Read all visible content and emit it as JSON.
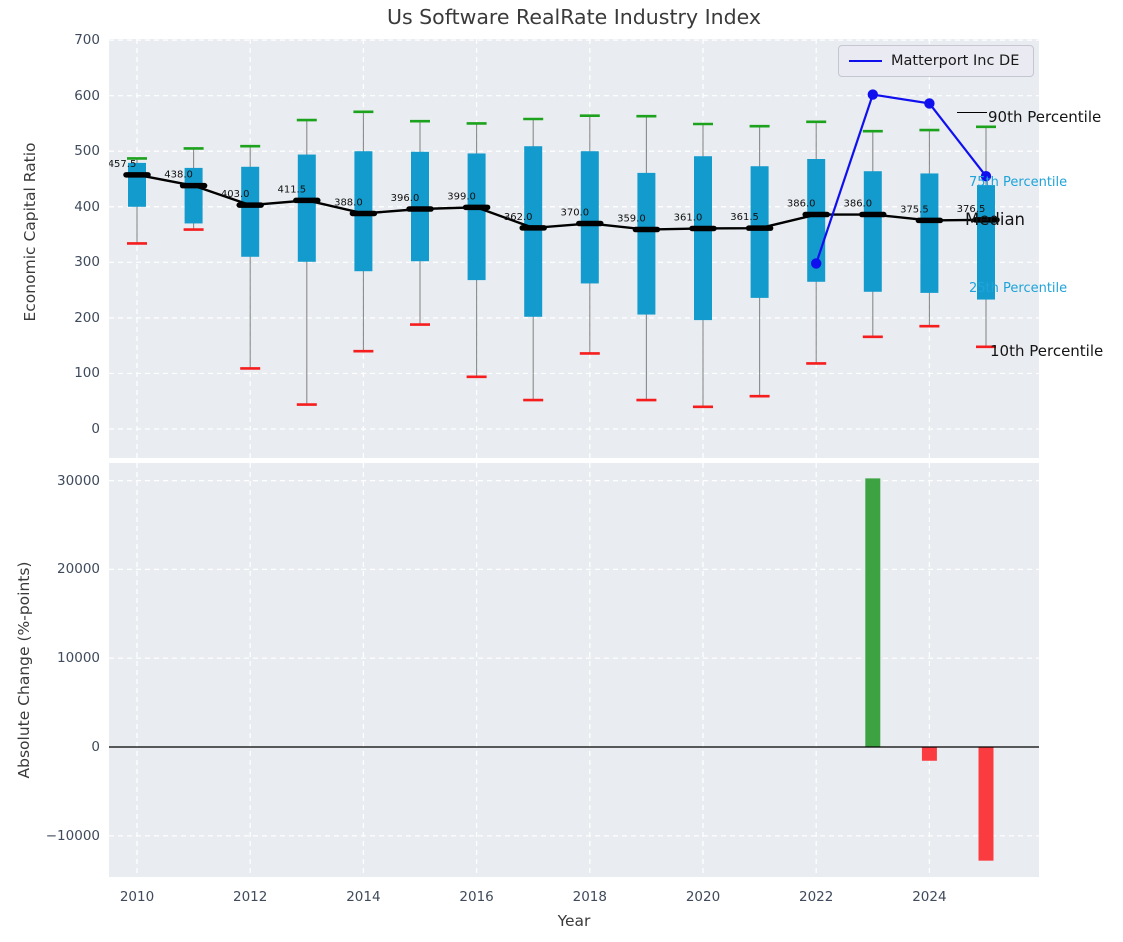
{
  "title": "Us Software RealRate Industry Index",
  "legend": {
    "label": "Matterport Inc DE"
  },
  "annotations": {
    "p90": "90th Percentile",
    "p75": "75th Percentile",
    "median": "Median",
    "p25": "25th Percentile",
    "p10": "10th Percentile"
  },
  "colors": {
    "box": "#149bcd",
    "whisker": "#8a8a8a",
    "cap_high": "#1da21d",
    "cap_low": "#f51d1d",
    "median_line": "#000000",
    "overlay_line": "#1010ee",
    "bar_up": "#3da342",
    "bar_down": "#fa3c40",
    "axes_bg": "#e9edf1",
    "grid": "#ffffff",
    "tick_text": "#3f4b5c",
    "blue_label": "#1fa3d9"
  },
  "chart_data": [
    {
      "type": "boxplot_line",
      "title": "Us Software RealRate Industry Index",
      "ylabel": "Economic Capital Ratio",
      "yticks": [
        0,
        100,
        200,
        300,
        400,
        500,
        600,
        700
      ],
      "ylim": [
        -52,
        701
      ],
      "grid": true,
      "years": [
        2010,
        2011,
        2012,
        2013,
        2014,
        2015,
        2016,
        2017,
        2018,
        2019,
        2020,
        2021,
        2022,
        2023,
        2024,
        2025
      ],
      "median": [
        457.5,
        438.0,
        403.0,
        411.5,
        388.0,
        396.0,
        399.0,
        362.0,
        370.0,
        359.0,
        361.0,
        361.5,
        386.0,
        386.0,
        375.5,
        376.5
      ],
      "median_labels": [
        "457.5",
        "438.0",
        "403.0",
        "411.5",
        "388.0",
        "396.0",
        "399.0",
        "362.0",
        "370.0",
        "359.0",
        "361.0",
        "361.5",
        "386.0",
        "386.0",
        "375.5",
        "376.5"
      ],
      "q75": [
        479,
        470,
        472,
        494,
        500,
        499,
        496,
        509,
        500,
        461,
        491,
        473,
        486,
        464,
        460,
        439
      ],
      "q25": [
        400,
        370,
        310,
        301,
        284,
        302,
        268,
        202,
        262,
        206,
        196,
        236,
        265,
        247,
        245,
        233
      ],
      "p90": [
        487,
        505,
        509,
        556,
        571,
        554,
        550,
        558,
        564,
        563,
        549,
        545,
        553,
        536,
        538,
        544
      ],
      "p10": [
        334,
        359,
        109,
        44,
        140,
        188,
        94,
        52,
        136,
        52,
        40,
        59,
        118,
        166,
        185,
        148
      ],
      "overlay_series": {
        "name": "Matterport Inc DE",
        "years": [
          2022,
          2023,
          2024,
          2025
        ],
        "values": [
          298,
          602,
          586,
          455
        ]
      },
      "legend_position": "upper right"
    },
    {
      "type": "bar",
      "ylabel": "Absolute Change (%-points)",
      "xlabel": "Year",
      "yticks": [
        -10000,
        0,
        10000,
        20000,
        30000
      ],
      "ylim": [
        -14640,
        31980
      ],
      "xticks": [
        2010,
        2012,
        2014,
        2016,
        2018,
        2020,
        2022,
        2024
      ],
      "grid": true,
      "zero_line": true,
      "bars": [
        {
          "year": 2023,
          "value": 30250,
          "direction": "up"
        },
        {
          "year": 2024,
          "value": -1550,
          "direction": "down"
        },
        {
          "year": 2025,
          "value": -12800,
          "direction": "down"
        }
      ]
    }
  ]
}
